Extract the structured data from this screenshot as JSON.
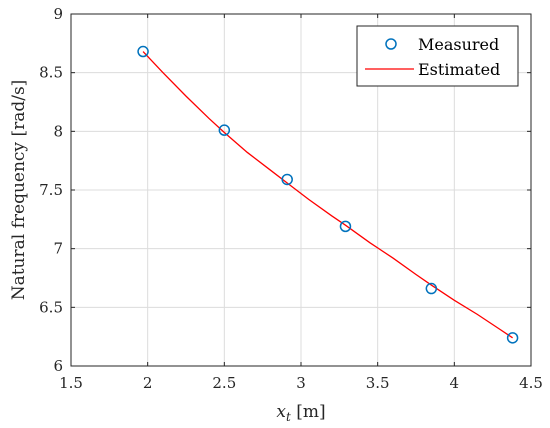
{
  "chart_data": {
    "type": "scatter",
    "xlabel_var": "x",
    "xlabel_sub": "t",
    "xlabel_unit": " [m]",
    "ylabel": "Natural frequency [rad/s]",
    "xlim": [
      1.5,
      4.5
    ],
    "ylim": [
      6,
      9
    ],
    "xticks": [
      "1.5",
      "2",
      "2.5",
      "3",
      "3.5",
      "4",
      "4.5"
    ],
    "yticks": [
      "6",
      "6.5",
      "7",
      "7.5",
      "8",
      "8.5",
      "9"
    ],
    "grid": true,
    "legend_position": "top-right",
    "series": [
      {
        "name": "Measured",
        "kind": "markers",
        "color": "#0072bd",
        "x": [
          1.97,
          2.5,
          2.91,
          3.29,
          3.85,
          4.38
        ],
        "y": [
          8.68,
          8.01,
          7.59,
          7.19,
          6.66,
          6.24
        ]
      },
      {
        "name": "Estimated",
        "kind": "line",
        "color": "#ff0000",
        "x": [
          1.97,
          2.1,
          2.25,
          2.4,
          2.5,
          2.65,
          2.8,
          2.91,
          3.05,
          3.2,
          3.29,
          3.45,
          3.6,
          3.75,
          3.85,
          4.0,
          4.15,
          4.3,
          4.38
        ],
        "y": [
          8.68,
          8.5,
          8.3,
          8.11,
          7.99,
          7.82,
          7.67,
          7.56,
          7.42,
          7.28,
          7.2,
          7.05,
          6.92,
          6.78,
          6.69,
          6.56,
          6.44,
          6.31,
          6.24
        ]
      }
    ]
  }
}
